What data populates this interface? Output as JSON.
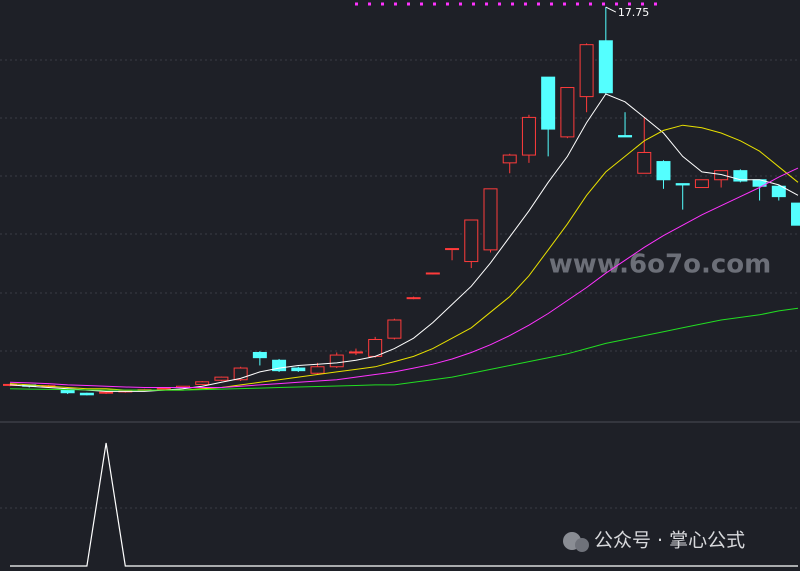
{
  "chart_data": {
    "type": "candlestick",
    "open": [
      3.2,
      3.2,
      3.15,
      3.0,
      2.88,
      2.9,
      2.95,
      3.0,
      3.05,
      3.1,
      3.22,
      3.38,
      3.4,
      4.45,
      4.15,
      3.85,
      3.65,
      3.9,
      4.45,
      4.3,
      5.0,
      6.55,
      7.5,
      8.45,
      7.95,
      8.4,
      11.75,
      12.05,
      15.05,
      12.75,
      14.3,
      16.45,
      12.8,
      11.35,
      11.8,
      10.95,
      10.8,
      11.1,
      11.45,
      11.1,
      10.85,
      10.2
    ],
    "high": [
      3.25,
      3.22,
      3.2,
      3.05,
      2.9,
      2.95,
      3.0,
      3.05,
      3.1,
      3.15,
      3.35,
      3.52,
      3.9,
      4.5,
      4.2,
      3.9,
      4.05,
      4.45,
      4.6,
      5.05,
      5.75,
      6.6,
      7.52,
      8.45,
      9.55,
      10.75,
      12.1,
      13.6,
      15.05,
      14.65,
      16.35,
      17.75,
      13.7,
      13.5,
      11.85,
      10.95,
      11.1,
      11.45,
      11.5,
      11.1,
      10.9,
      10.2
    ],
    "low": [
      3.15,
      3.1,
      3.1,
      2.85,
      2.8,
      2.85,
      2.9,
      2.95,
      3.0,
      3.05,
      3.2,
      3.35,
      3.35,
      3.95,
      3.7,
      3.7,
      3.6,
      3.85,
      4.35,
      4.25,
      4.95,
      6.5,
      7.45,
      8.0,
      7.7,
      8.3,
      11.35,
      11.75,
      12.0,
      12.7,
      13.7,
      14.4,
      12.75,
      11.35,
      10.75,
      9.95,
      10.8,
      10.8,
      11.0,
      10.3,
      10.3,
      9.35
    ],
    "close": [
      3.22,
      3.15,
      3.17,
      2.9,
      2.82,
      2.92,
      2.97,
      3.02,
      3.08,
      3.15,
      3.32,
      3.5,
      3.85,
      4.25,
      3.75,
      3.75,
      3.9,
      4.35,
      4.47,
      4.95,
      5.7,
      6.56,
      7.51,
      8.45,
      9.55,
      10.75,
      12.05,
      13.5,
      13.05,
      14.65,
      16.3,
      14.45,
      12.75,
      12.15,
      11.1,
      10.9,
      11.1,
      11.45,
      11.05,
      10.85,
      10.45,
      9.35
    ],
    "up_color": "#ff3b3b",
    "down_color": "#54ffff",
    "ylim": [
      1.85,
      18.02
    ],
    "series": [
      {
        "color": "#ffffff",
        "values": [
          3.2,
          3.15,
          3.1,
          3.05,
          3.0,
          2.95,
          2.95,
          2.95,
          3.0,
          3.05,
          3.15,
          3.3,
          3.45,
          3.7,
          3.85,
          3.95,
          4.0,
          4.05,
          4.15,
          4.3,
          4.6,
          5.0,
          5.6,
          6.3,
          7.0,
          7.9,
          8.9,
          9.9,
          11.0,
          12.0,
          13.3,
          14.4,
          14.1,
          13.5,
          12.9,
          12.0,
          11.4,
          11.3,
          11.1,
          11.1,
          10.9,
          10.5
        ]
      },
      {
        "color": "#e8e000",
        "values": [
          3.25,
          3.2,
          3.15,
          3.1,
          3.05,
          3.05,
          3.0,
          3.0,
          3.0,
          3.0,
          3.05,
          3.1,
          3.2,
          3.3,
          3.4,
          3.5,
          3.6,
          3.7,
          3.8,
          3.9,
          4.1,
          4.3,
          4.6,
          5.0,
          5.4,
          6.0,
          6.6,
          7.4,
          8.4,
          9.4,
          10.5,
          11.4,
          12.0,
          12.6,
          13.0,
          13.2,
          13.1,
          12.9,
          12.6,
          12.2,
          11.6,
          11.0
        ]
      },
      {
        "color": "#ff33ff",
        "values": [
          3.3,
          3.28,
          3.25,
          3.2,
          3.18,
          3.15,
          3.12,
          3.1,
          3.1,
          3.1,
          3.1,
          3.1,
          3.15,
          3.2,
          3.25,
          3.3,
          3.35,
          3.4,
          3.5,
          3.6,
          3.7,
          3.85,
          4.0,
          4.2,
          4.45,
          4.75,
          5.1,
          5.5,
          5.95,
          6.45,
          6.95,
          7.5,
          8.0,
          8.5,
          8.95,
          9.35,
          9.75,
          10.1,
          10.45,
          10.8,
          11.2,
          11.55
        ]
      },
      {
        "color": "#22dd22",
        "values": [
          3.05,
          3.04,
          3.03,
          3.02,
          3.01,
          3.0,
          3.0,
          3.0,
          3.0,
          3.0,
          3.02,
          3.04,
          3.06,
          3.08,
          3.1,
          3.12,
          3.14,
          3.16,
          3.18,
          3.2,
          3.2,
          3.3,
          3.4,
          3.5,
          3.65,
          3.8,
          3.95,
          4.1,
          4.25,
          4.4,
          4.6,
          4.8,
          4.95,
          5.1,
          5.25,
          5.4,
          5.55,
          5.7,
          5.8,
          5.9,
          6.05,
          6.15
        ]
      }
    ],
    "indicator": {
      "color": "#ffffff",
      "ylim": [
        0,
        1
      ],
      "values": [
        0,
        0,
        0,
        0,
        0,
        1,
        0,
        0,
        0,
        0,
        0,
        0,
        0,
        0,
        0,
        0,
        0,
        0,
        0,
        0,
        0,
        0,
        0,
        0,
        0,
        0,
        0,
        0,
        0,
        0,
        0,
        0,
        0,
        0,
        0,
        0,
        0,
        0,
        0,
        0,
        0,
        0
      ]
    },
    "watermark": "www.6o7o.com",
    "source": "公众号 · 掌心公式"
  }
}
